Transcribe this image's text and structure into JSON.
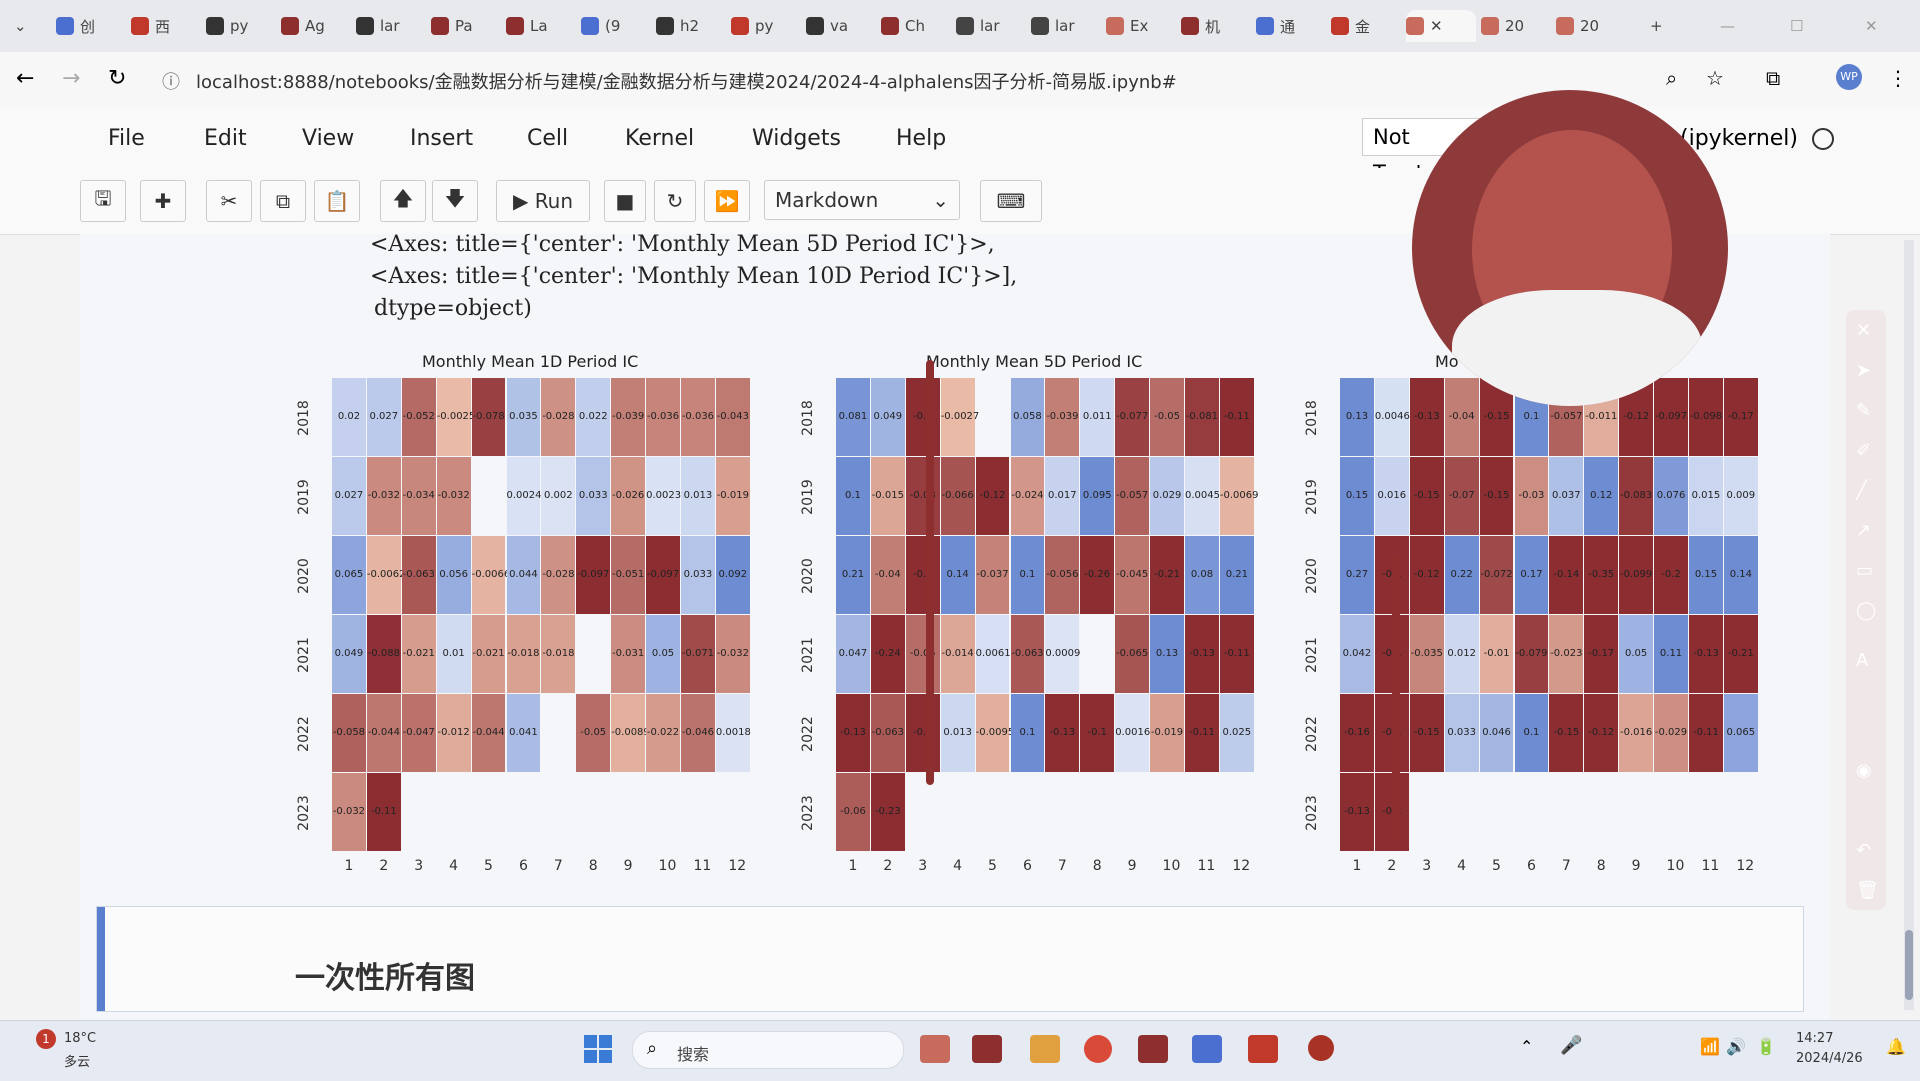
{
  "tabs": [
    {
      "label": "创"
    },
    {
      "label": "西"
    },
    {
      "label": "py"
    },
    {
      "label": "Ag"
    },
    {
      "label": "lar"
    },
    {
      "label": "Pa"
    },
    {
      "label": "La"
    },
    {
      "label": "(9"
    },
    {
      "label": "h2"
    },
    {
      "label": "py"
    },
    {
      "label": "va"
    },
    {
      "label": "Ch"
    },
    {
      "label": "lar"
    },
    {
      "label": "lar"
    },
    {
      "label": "Ex"
    },
    {
      "label": "机"
    },
    {
      "label": "通"
    },
    {
      "label": "金"
    },
    {
      "label": ""
    },
    {
      "label": "20"
    },
    {
      "label": "20"
    }
  ],
  "address": {
    "url": "localhost:8888/notebooks/金融数据分析与建模/金融数据分析与建模2024/2024-4-alphalens因子分析-简易版.ipynb#"
  },
  "menu": [
    "File",
    "Edit",
    "View",
    "Insert",
    "Cell",
    "Kernel",
    "Widgets",
    "Help"
  ],
  "kernel": {
    "trust": "Not Trusted",
    "name": "(ipykernel)"
  },
  "toolbar": {
    "run_label": "Run",
    "cell_type": "Markdown"
  },
  "output_text": {
    "line1": "<Axes: title={'center': 'Monthly Mean 5D Period IC'}>,",
    "line2": "<Axes: title={'center': 'Monthly Mean 10D Period IC'}>],",
    "line3": "dtype=object)"
  },
  "markdown_heading": "一次性所有图",
  "taskbar": {
    "weather": "18°C",
    "weather_desc": "多云",
    "search": "搜索",
    "time": "14:27",
    "date": "2024/4/26"
  },
  "chart_data": [
    {
      "type": "heatmap",
      "title": "Monthly Mean 1D Period IC",
      "x": [
        "1",
        "2",
        "3",
        "4",
        "5",
        "6",
        "7",
        "8",
        "9",
        "10",
        "11",
        "12"
      ],
      "y": [
        "2018",
        "2019",
        "2020",
        "2021",
        "2022",
        "2023"
      ],
      "values": [
        [
          "0.02",
          "0.027",
          "-0.052",
          "-0.0025",
          "-0.078",
          "0.035",
          "-0.028",
          "0.022",
          "-0.039",
          "-0.036",
          "-0.036",
          "-0.043"
        ],
        [
          "0.027",
          "-0.032",
          "-0.034",
          "-0.032",
          "",
          "0.0024",
          "0.002",
          "0.033",
          "-0.026",
          "0.0023",
          "0.013",
          "-0.019"
        ],
        [
          "0.065",
          "-0.0062",
          "-0.063",
          "0.056",
          "-0.0066",
          "0.044",
          "-0.028",
          "-0.097",
          "-0.051",
          "-0.097",
          "0.033",
          "0.092"
        ],
        [
          "0.049",
          "-0.088",
          "-0.021",
          "0.01",
          "-0.021",
          "-0.018",
          "-0.018",
          "",
          "-0.031",
          "0.05",
          "-0.071",
          "-0.032"
        ],
        [
          "-0.058",
          "-0.044",
          "-0.047",
          "-0.012",
          "-0.044",
          "0.041",
          "",
          "-0.05",
          "-0.0089",
          "-0.022",
          "-0.046",
          "0.0018"
        ],
        [
          "-0.032",
          "-0.11",
          "",
          "",
          "",
          "",
          "",
          "",
          "",
          "",
          "",
          ""
        ]
      ]
    },
    {
      "type": "heatmap",
      "title": "Monthly Mean 5D Period IC",
      "x": [
        "1",
        "2",
        "3",
        "4",
        "5",
        "6",
        "7",
        "8",
        "9",
        "10",
        "11",
        "12"
      ],
      "y": [
        "2018",
        "2019",
        "2020",
        "2021",
        "2022",
        "2023"
      ],
      "values": [
        [
          "0.081",
          "0.049",
          "-0.1",
          "-0.0027",
          "",
          "0.058",
          "-0.039",
          "0.011",
          "-0.077",
          "-0.05",
          "-0.081",
          "-0.11"
        ],
        [
          "0.1",
          "-0.015",
          "-0.08",
          "-0.066",
          "-0.12",
          "-0.024",
          "0.017",
          "0.095",
          "-0.057",
          "0.029",
          "0.0045",
          "-0.0069"
        ],
        [
          "0.21",
          "-0.04",
          "-0.3",
          "0.14",
          "-0.037",
          "0.1",
          "-0.056",
          "-0.26",
          "-0.045",
          "-0.21",
          "0.08",
          "0.21"
        ],
        [
          "0.047",
          "-0.24",
          "-0.05",
          "-0.014",
          "0.0061",
          "-0.063",
          "0.0009",
          "",
          "-0.065",
          "0.13",
          "-0.13",
          "-0.11"
        ],
        [
          "-0.13",
          "-0.063",
          "-0.1",
          "0.013",
          "-0.0095",
          "0.1",
          "-0.13",
          "-0.1",
          "0.0016",
          "-0.019",
          "-0.11",
          "0.025"
        ],
        [
          "-0.06",
          "-0.23",
          "",
          "",
          "",
          "",
          "",
          "",
          "",
          "",
          "",
          ""
        ]
      ]
    },
    {
      "type": "heatmap",
      "title": "Mo",
      "x": [
        "1",
        "2",
        "3",
        "4",
        "5",
        "6",
        "7",
        "8",
        "9",
        "10",
        "11",
        "12"
      ],
      "y": [
        "2018",
        "2019",
        "2020",
        "2021",
        "2022",
        "2023"
      ],
      "values": [
        [
          "0.13",
          "0.0046",
          "-0.13",
          "-0.04",
          "-0.15",
          "0.1",
          "-0.057",
          "-0.011",
          "-0.12",
          "-0.097",
          "-0.098",
          "-0.17"
        ],
        [
          "0.15",
          "0.016",
          "-0.15",
          "-0.07",
          "-0.15",
          "-0.03",
          "0.037",
          "0.12",
          "-0.083",
          "0.076",
          "0.015",
          "0.009"
        ],
        [
          "0.27",
          "-0.1",
          "-0.12",
          "0.22",
          "-0.072",
          "0.17",
          "-0.14",
          "-0.35",
          "-0.099",
          "-0.2",
          "0.15",
          "0.14"
        ],
        [
          "0.042",
          "-0.1",
          "-0.035",
          "0.012",
          "-0.01",
          "-0.079",
          "-0.023",
          "-0.17",
          "0.05",
          "0.11",
          "-0.13",
          "-0.21"
        ],
        [
          "-0.16",
          "-0.1",
          "-0.15",
          "0.033",
          "0.046",
          "0.1",
          "-0.15",
          "-0.12",
          "-0.016",
          "-0.029",
          "-0.11",
          "0.065"
        ],
        [
          "-0.13",
          "-0.1",
          "",
          "",
          "",
          "",
          "",
          "",
          "",
          "",
          "",
          ""
        ]
      ]
    }
  ]
}
